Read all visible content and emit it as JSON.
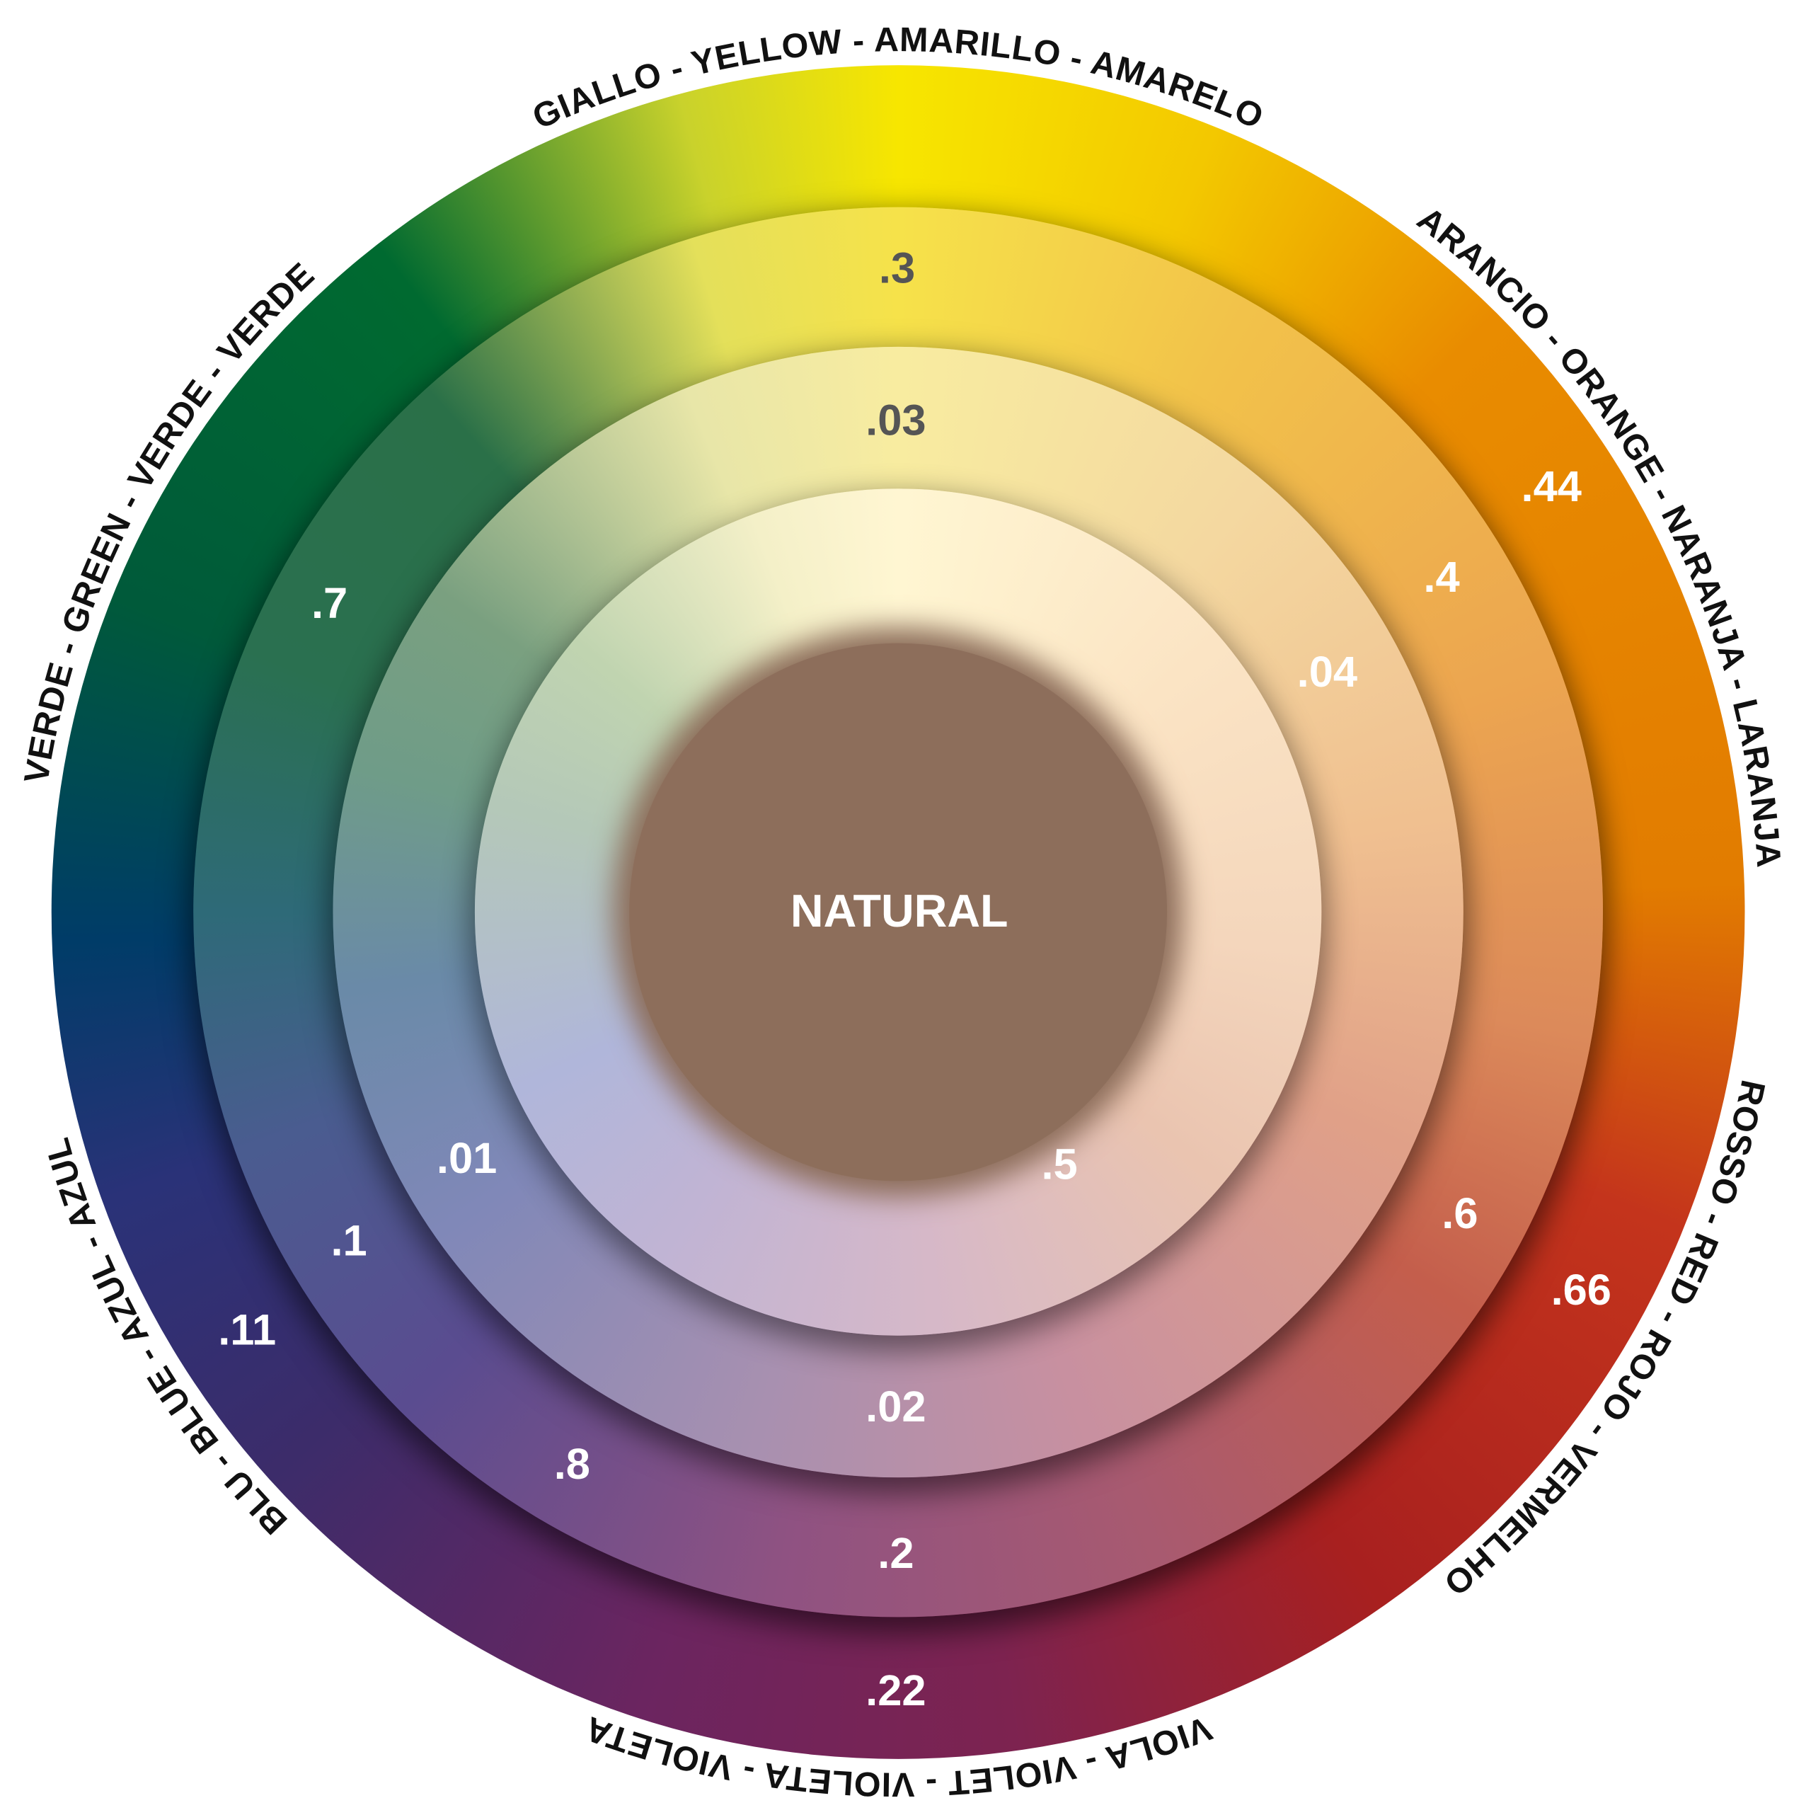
{
  "center_label": "NATURAL",
  "outer_labels": [
    "GIALLO - YELLOW - AMARILLO - AMARELO",
    "ARANCIO - ORANGE - NARANJA - LARANJA",
    "ROSSO - RED - ROJO - VERMELHO",
    "VIOLA - VIOLET - VIOLETA - VIOLETA",
    "BLU - BLUE - AZUL - AZUL",
    "VERDE - GREEN - VERDE - VERDE"
  ],
  "ring_values": [
    ".3",
    ".03",
    ".44",
    ".4",
    ".04",
    ".7",
    ".01",
    ".5",
    ".6",
    ".66",
    ".1",
    ".11",
    ".02",
    ".8",
    ".2",
    ".22"
  ]
}
